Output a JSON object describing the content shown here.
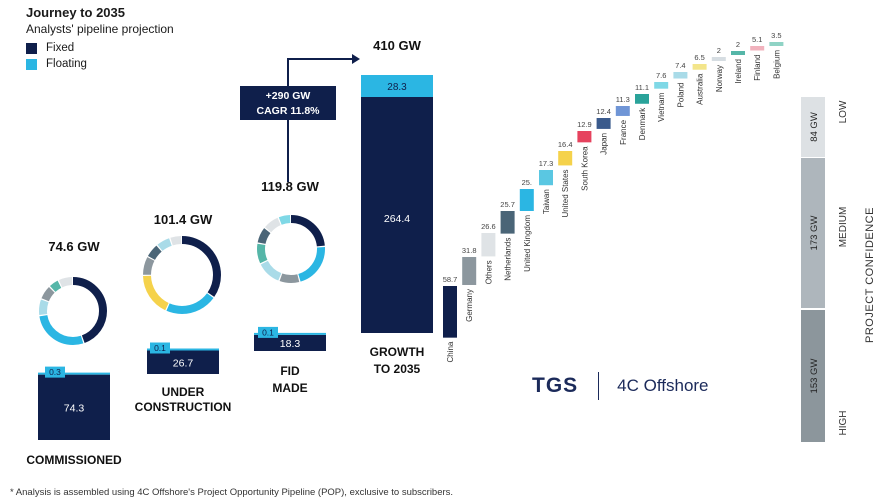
{
  "header": {
    "title": "Journey to 2035",
    "subtitle": "Analysts' pipeline projection"
  },
  "legend": [
    {
      "label": "Fixed",
      "color": "#0f1f4b"
    },
    {
      "label": "Floating",
      "color": "#2bb6e3"
    }
  ],
  "chart_data": [
    {
      "type": "bar",
      "categories": [
        "COMMISSIONED",
        "UNDER CONSTRUCTION",
        "FID MADE",
        "GROWTH TO 2035"
      ],
      "series": [
        {
          "name": "Fixed",
          "values": [
            74.3,
            26.7,
            18.3,
            264.4
          ],
          "labels": [
            "74.3",
            "26.7",
            "18.3",
            "264.4"
          ]
        },
        {
          "name": "Floating",
          "values": [
            0.3,
            0.1,
            0.1,
            28.3
          ],
          "labels": [
            "0.3",
            "0.1",
            "0.1",
            "28.3"
          ]
        }
      ],
      "totals": [
        "74.6 GW",
        "101.4 GW",
        "119.8 GW",
        "410 GW"
      ],
      "growth_annotation": {
        "line1": "+290 GW",
        "line2": "CAGR 11.8%"
      }
    },
    {
      "type": "bar",
      "categories": [
        "China",
        "Germany",
        "Others",
        "Netherlands",
        "United Kingdom",
        "Taiwan",
        "United States",
        "South Korea",
        "Japan",
        "France",
        "Denmark",
        "Vietnam",
        "Poland",
        "Australia",
        "Norway",
        "Ireland",
        "Finland",
        "Belgium"
      ],
      "values": [
        58.7,
        31.8,
        26.6,
        25.7,
        25,
        17.3,
        16.4,
        12.9,
        12.4,
        11.3,
        11.1,
        7.6,
        7.4,
        6.5,
        2,
        2,
        5.1,
        3.5
      ],
      "value_labels": [
        "58.7",
        "31.8",
        "26.6",
        "25.7",
        "25.",
        "17.3",
        "16.4",
        "12.9",
        "12.4",
        "11.3",
        "11.1",
        "7.6",
        "7.4",
        "6.5",
        "2",
        "2",
        "5.1",
        "3.5"
      ],
      "colors": [
        "#0f1f4b",
        "#8c979e",
        "#dfe3e6",
        "#4a6577",
        "#2bb6e3",
        "#5ac7e2",
        "#f5d24b",
        "#e6425e",
        "#3a5a8c",
        "#6f95d6",
        "#2aa39a",
        "#7fd8e6",
        "#a9dbe8",
        "#f3e58a",
        "#d6dde2",
        "#55b6a8",
        "#f1b2bd",
        "#8fd3c5"
      ]
    },
    {
      "type": "bar",
      "axis_title": "PROJECT CONFIDENCE",
      "categories": [
        "LOW",
        "MEDIUM",
        "HIGH"
      ],
      "values": [
        84,
        173,
        153
      ],
      "value_labels": [
        "84 GW",
        "173 GW",
        "153 GW"
      ],
      "colors": [
        "#dde1e4",
        "#aeb6bc",
        "#8c969c"
      ]
    }
  ],
  "donuts": [
    {
      "segments": [
        {
          "value": 45,
          "color": "#0f1f4b"
        },
        {
          "value": 28,
          "color": "#2bb6e3"
        },
        {
          "value": 8,
          "color": "#a9dbe8"
        },
        {
          "value": 7,
          "color": "#8c979e"
        },
        {
          "value": 5,
          "color": "#55b6a8"
        },
        {
          "value": 7,
          "color": "#dfe3e6"
        }
      ]
    },
    {
      "segments": [
        {
          "value": 35,
          "color": "#0f1f4b"
        },
        {
          "value": 22,
          "color": "#2bb6e3"
        },
        {
          "value": 18,
          "color": "#f5d24b"
        },
        {
          "value": 8,
          "color": "#8c979e"
        },
        {
          "value": 6,
          "color": "#4a6577"
        },
        {
          "value": 6,
          "color": "#a9dbe8"
        },
        {
          "value": 5,
          "color": "#dfe3e6"
        }
      ]
    },
    {
      "segments": [
        {
          "value": 24,
          "color": "#0f1f4b"
        },
        {
          "value": 22,
          "color": "#2bb6e3"
        },
        {
          "value": 10,
          "color": "#8c979e"
        },
        {
          "value": 12,
          "color": "#a9dbe8"
        },
        {
          "value": 10,
          "color": "#55b6a8"
        },
        {
          "value": 8,
          "color": "#4a6577"
        },
        {
          "value": 8,
          "color": "#dfe3e6"
        },
        {
          "value": 6,
          "color": "#7fd8e6"
        }
      ]
    }
  ],
  "brand": {
    "mark": "TGS",
    "name": "4C Offshore"
  },
  "footnote": "* Analysis is assembled using 4C Offshore's Project Opportunity Pipeline (POP), exclusive to subscribers."
}
